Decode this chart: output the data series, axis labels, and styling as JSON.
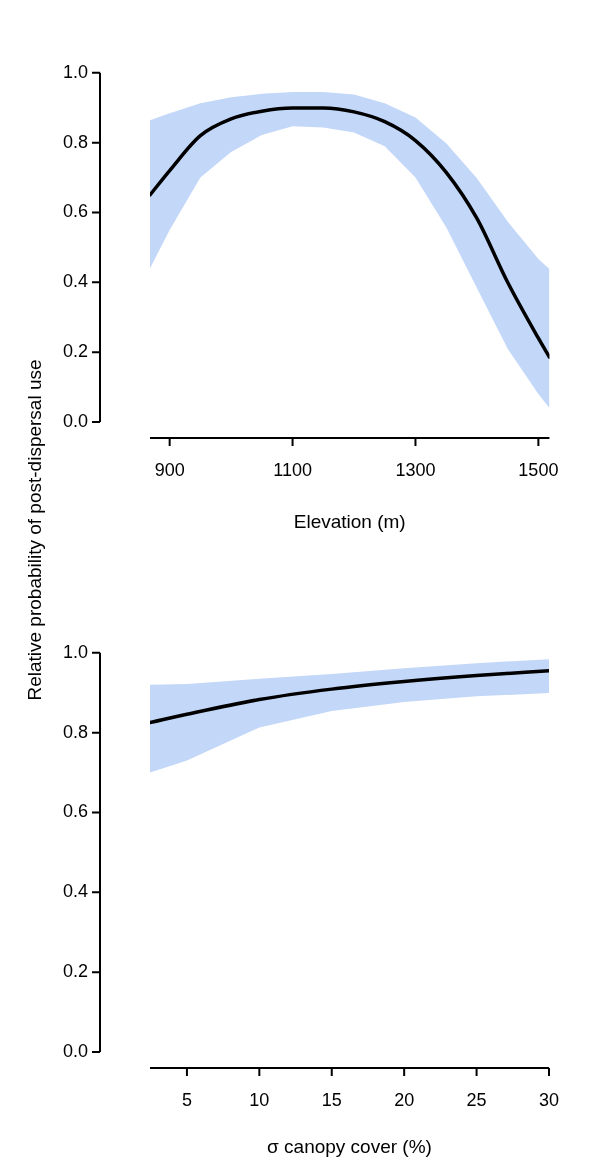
{
  "chart_data": [
    {
      "type": "line",
      "xlabel": "Elevation (m)",
      "ylabel": "Relative probability of post-dispersal use",
      "x": [
        868,
        900,
        950,
        1000,
        1050,
        1100,
        1150,
        1200,
        1250,
        1300,
        1350,
        1400,
        1450,
        1500,
        1518
      ],
      "series": [
        {
          "color": "#000000",
          "values": [
            0.65,
            0.72,
            0.82,
            0.868,
            0.89,
            0.899,
            0.899,
            0.888,
            0.86,
            0.806,
            0.715,
            0.583,
            0.4,
            0.24,
            0.186
          ],
          "lower": [
            0.44,
            0.55,
            0.7,
            0.773,
            0.822,
            0.847,
            0.843,
            0.829,
            0.79,
            0.7,
            0.558,
            0.384,
            0.21,
            0.08,
            0.04
          ],
          "upper": [
            0.864,
            0.884,
            0.913,
            0.93,
            0.94,
            0.945,
            0.945,
            0.938,
            0.913,
            0.872,
            0.798,
            0.698,
            0.574,
            0.467,
            0.438
          ]
        }
      ],
      "xlim": [
        868,
        1518
      ],
      "xticks": [
        900,
        1100,
        1300,
        1500
      ],
      "ylim": [
        0,
        1
      ],
      "yticks": [
        {
          "value": 0,
          "label": "0.0"
        },
        {
          "value": 0.2,
          "label": "0.2"
        },
        {
          "value": 0.4,
          "label": "0.4"
        },
        {
          "value": 0.6,
          "label": "0.6"
        },
        {
          "value": 0.8,
          "label": "0.8"
        },
        {
          "value": 1,
          "label": "1.0"
        }
      ],
      "grid": false,
      "legend": false,
      "marker": "none",
      "line_style": "solid"
    },
    {
      "type": "line",
      "xlabel": "σ canopy cover (%)",
      "x": [
        2.45,
        5,
        10,
        15,
        20,
        25,
        30
      ],
      "series": [
        {
          "color": "#000000",
          "values": [
            0.825,
            0.846,
            0.883,
            0.909,
            0.928,
            0.943,
            0.955
          ],
          "lower": [
            0.7,
            0.73,
            0.813,
            0.854,
            0.877,
            0.891,
            0.899
          ],
          "upper": [
            0.92,
            0.922,
            0.935,
            0.947,
            0.961,
            0.974,
            0.984
          ]
        }
      ],
      "xlim": [
        2.45,
        30
      ],
      "xticks": [
        5,
        10,
        15,
        20,
        25,
        30
      ],
      "ylim": [
        0,
        1
      ],
      "yticks": [
        {
          "value": 0,
          "label": "0.0"
        },
        {
          "value": 0.2,
          "label": "0.2"
        },
        {
          "value": 0.4,
          "label": "0.4"
        },
        {
          "value": 0.6,
          "label": "0.6"
        },
        {
          "value": 0.8,
          "label": "0.8"
        },
        {
          "value": 1,
          "label": "1.0"
        }
      ],
      "grid": false,
      "legend": false,
      "marker": "none",
      "line_style": "solid"
    }
  ]
}
